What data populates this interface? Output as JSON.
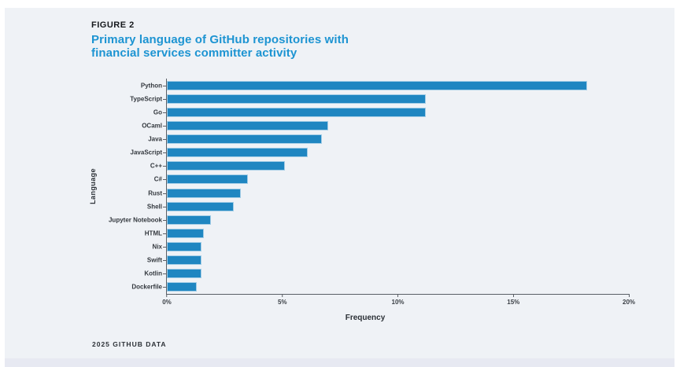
{
  "figure_label": "FIGURE 2",
  "title": "Primary language of GitHub repositories with financial services committer activity",
  "title_lines": [
    "Primary language of GitHub repositories with",
    "financial services committer activity"
  ],
  "footer": "2025 GITHUB DATA",
  "colors": {
    "accent_blue": "#1d94d2",
    "bar_fill": "#1f86c1",
    "bar_edge": "#a3cde6",
    "panel_bg": "#eff2f6",
    "bottom_strip": "#e7e9f2",
    "axis_line": "#5a5f66",
    "heading_text": "#15181c",
    "label_text": "#33383e"
  },
  "chart_data": {
    "type": "bar",
    "orientation": "horizontal",
    "title": "Primary language of GitHub repositories with financial services committer activity",
    "xlabel": "Frequency",
    "ylabel": "Language",
    "categories": [
      "Python",
      "TypeScript",
      "Go",
      "OCaml",
      "Java",
      "JavaScript",
      "C++",
      "C#",
      "Rust",
      "Shell",
      "Jupyter Notebook",
      "HTML",
      "Nix",
      "Swift",
      "Kotlin",
      "Dockerfile"
    ],
    "values": [
      18.2,
      11.2,
      11.2,
      7.0,
      6.7,
      6.1,
      5.1,
      3.5,
      3.2,
      2.9,
      1.9,
      1.6,
      1.5,
      1.5,
      1.5,
      1.3
    ],
    "unit": "%",
    "x_ticks": [
      "0%",
      "5%",
      "10%",
      "15%",
      "20%"
    ],
    "xlim": [
      0,
      20
    ],
    "grid": false,
    "legend_position": "none"
  }
}
